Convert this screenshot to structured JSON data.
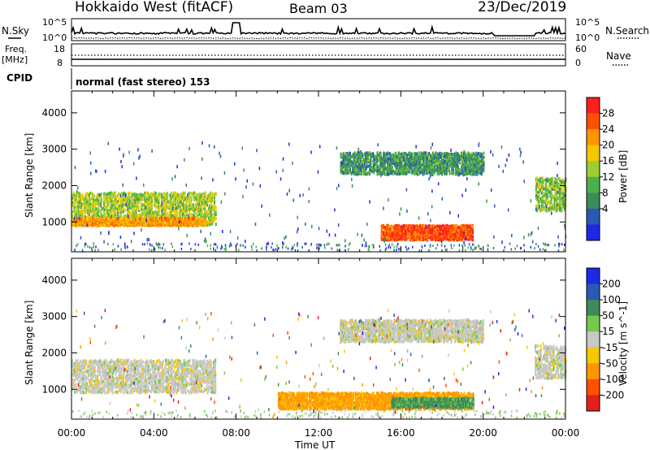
{
  "header": {
    "station": "Hokkaido West (fitACF)",
    "beam": "Beam 03",
    "date": "23/Dec/2019"
  },
  "strip": {
    "nsky_label": "N.Sky",
    "nsky_ticks": [
      "10^5",
      "10^0"
    ],
    "nsearch_label": "N.Search",
    "nsearch_ticks": [
      "10^5",
      "10^0"
    ],
    "freq_label_1": "Freq.",
    "freq_label_2": "[MHz]",
    "freq_ticks": [
      "18",
      "8"
    ],
    "nave_label": "Nave",
    "nave_ticks": [
      "60",
      "0"
    ],
    "cpid_label": "CPID",
    "cpid_value": "normal (fast stereo) 153"
  },
  "colors": {
    "power": [
      "#1e28e6",
      "#2a5ab4",
      "#3c8c5a",
      "#4cb048",
      "#9ccd32",
      "#f5c800",
      "#ff9600",
      "#ff5000",
      "#ff1e1e"
    ],
    "velocity": [
      "#1e28e6",
      "#2a5ab4",
      "#3c8c5a",
      "#78c850",
      "#c8c8c8",
      "#f5c800",
      "#ff9600",
      "#ff5000",
      "#e61e1e"
    ],
    "ground_scatter": "#b9b9b9"
  },
  "chart_data": [
    {
      "type": "heatmap",
      "title": "Power",
      "xlabel": "Time UT",
      "ylabel": "Slant Range [km]",
      "x_ticks": [
        "00:00",
        "04:00",
        "08:00",
        "12:00",
        "16:00",
        "20:00",
        "00:00"
      ],
      "x_range_hours": [
        0,
        24
      ],
      "y_ticks": [
        1000,
        2000,
        3000,
        4000
      ],
      "y_range_km": [
        180,
        4600
      ],
      "colorbar": {
        "label": "Power [dB]",
        "tick_labels": [
          "4",
          "8",
          "12",
          "16",
          "20",
          "24",
          "28"
        ]
      },
      "regions": [
        {
          "start_h": 0.0,
          "end_h": 7.0,
          "range_km": [
            900,
            1800
          ],
          "value": 16
        },
        {
          "start_h": 0.0,
          "end_h": 6.5,
          "range_km": [
            900,
            1100
          ],
          "value": 22
        },
        {
          "start_h": 15.0,
          "end_h": 19.5,
          "range_km": [
            500,
            900
          ],
          "value": 27
        },
        {
          "start_h": 13.0,
          "end_h": 20.0,
          "range_km": [
            2300,
            2900
          ],
          "value": 10
        },
        {
          "start_h": 22.5,
          "end_h": 24.0,
          "range_km": [
            1300,
            2200
          ],
          "value": 14
        }
      ]
    },
    {
      "type": "heatmap",
      "title": "Velocity",
      "xlabel": "Time UT",
      "ylabel": "Slant Range [km]",
      "x_ticks": [
        "00:00",
        "04:00",
        "08:00",
        "12:00",
        "16:00",
        "20:00",
        "00:00"
      ],
      "x_range_hours": [
        0,
        24
      ],
      "y_ticks": [
        1000,
        2000,
        3000,
        4000
      ],
      "y_range_km": [
        180,
        4600
      ],
      "colorbar": {
        "label": "Velocity [m s^-1]",
        "tick_labels": [
          "200",
          "100",
          "50",
          "15",
          "-15",
          "-50",
          "-100",
          "-200"
        ]
      },
      "regions": [
        {
          "start_h": 0.0,
          "end_h": 7.0,
          "range_km": [
            900,
            1800
          ],
          "value": 0
        },
        {
          "start_h": 10.0,
          "end_h": 19.5,
          "range_km": [
            450,
            900
          ],
          "value": -60
        },
        {
          "start_h": 15.5,
          "end_h": 19.5,
          "range_km": [
            500,
            750
          ],
          "value": 60
        },
        {
          "start_h": 13.0,
          "end_h": 20.0,
          "range_km": [
            2300,
            2900
          ],
          "value": 0
        },
        {
          "start_h": 22.5,
          "end_h": 24.0,
          "range_km": [
            1300,
            2200
          ],
          "value": 0
        }
      ]
    }
  ]
}
